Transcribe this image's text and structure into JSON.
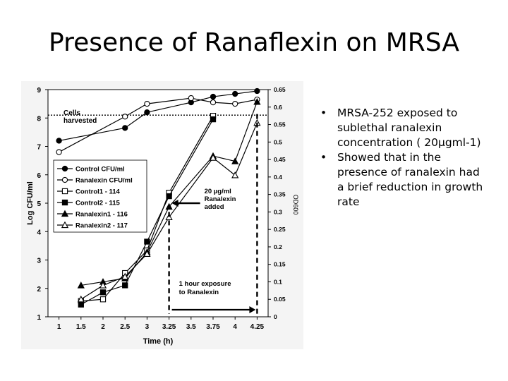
{
  "slide": {
    "title": "Presence of Ranaflexin on MRSA",
    "bullets": [
      "MRSA-252 exposed to sublethal ranalexin concentration ( 20µgml-1)",
      "Showed that in the presence of ranalexin had a brief reduction in growth rate"
    ],
    "bullet_glyph": "•"
  },
  "chart_data": {
    "type": "line",
    "x": [
      1,
      1.5,
      2,
      2.5,
      3,
      3.25,
      3.5,
      3.75,
      4,
      4.25
    ],
    "x_tick_labels": [
      "1",
      "1.5",
      "2",
      "2.5",
      "3",
      "3.25",
      "3.5",
      "3.75",
      "4",
      "4.25"
    ],
    "xlabel": "Time (h)",
    "ylabel": "Log CFU/ml",
    "y2label": "OD600",
    "ylim": [
      1,
      9
    ],
    "y_ticks": [
      "1",
      "2",
      "3",
      "4",
      "5",
      "6",
      "7",
      "8",
      "9"
    ],
    "y2lim": [
      0,
      0.65
    ],
    "y2_ticks": [
      "0",
      "0.05",
      "0.1",
      "0.15",
      "0.2",
      "0.25",
      "0.3",
      "0.35",
      "0.4",
      "0.45",
      "0.5",
      "0.55",
      "0.6",
      "0.65"
    ],
    "grid": false,
    "legend_position": "middle-left",
    "series": [
      {
        "name": "Control CFU/ml",
        "axis": "left",
        "marker": "filled-circle",
        "x": [
          1,
          2.5,
          3,
          3.5,
          3.75,
          4,
          4.25
        ],
        "values": [
          7.2,
          7.65,
          8.2,
          8.55,
          8.75,
          8.85,
          8.95
        ]
      },
      {
        "name": "Ranalexin CFU/ml",
        "axis": "left",
        "marker": "open-circle",
        "x": [
          1,
          2.5,
          3,
          3.5,
          3.75,
          4,
          4.25
        ],
        "values": [
          6.8,
          8.05,
          8.5,
          8.7,
          8.55,
          8.5,
          8.65
        ]
      },
      {
        "name": "Control1 - 114",
        "axis": "right",
        "marker": "open-square",
        "x": [
          1.5,
          2,
          2.5,
          3,
          3.25,
          3.75
        ],
        "values": [
          0.045,
          0.05,
          0.125,
          0.19,
          0.355,
          0.575
        ]
      },
      {
        "name": "Control2 - 115",
        "axis": "right",
        "marker": "filled-square",
        "x": [
          1.5,
          2,
          2.5,
          3,
          3.25,
          3.75
        ],
        "values": [
          0.035,
          0.07,
          0.09,
          0.215,
          0.345,
          0.565
        ]
      },
      {
        "name": "Ranalexin1 - 116",
        "axis": "right",
        "marker": "filled-triangle",
        "x": [
          1.5,
          2,
          2.5,
          3,
          3.25,
          3.75,
          4,
          4.25
        ],
        "values": [
          0.09,
          0.1,
          0.11,
          0.185,
          0.315,
          0.46,
          0.445,
          0.615
        ]
      },
      {
        "name": "Ranalexin2 - 117",
        "axis": "right",
        "marker": "open-triangle",
        "x": [
          1.5,
          2,
          2.5,
          3,
          3.25,
          3.75,
          4,
          4.25
        ],
        "values": [
          0.05,
          0.09,
          0.115,
          0.18,
          0.285,
          0.455,
          0.405,
          0.555
        ]
      }
    ],
    "annotations": {
      "cells_harvested": "Cells harvested",
      "cells_harvested_level": 8.1,
      "ranalexin_added": "20 µg/ml Ranalexin added",
      "exposure": "1 hour exposure to Ranalexin"
    }
  }
}
